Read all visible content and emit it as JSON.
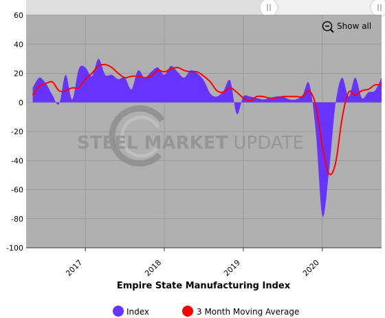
{
  "chart_data": {
    "type": "area",
    "title": "Empire State Manufacturing Index",
    "xlabel": "",
    "ylabel": "",
    "ylim": [
      -100,
      60
    ],
    "y_ticks": [
      "60",
      "40",
      "20",
      "0",
      "-20",
      "-40",
      "-60",
      "-80",
      "-100"
    ],
    "x_ticks": [
      "2017",
      "2018",
      "2019",
      "2020"
    ],
    "legend_position": "bottom-center",
    "grid": true,
    "series": [
      {
        "name": "Index",
        "type": "area",
        "color": "#6633ff",
        "x": [
          "2016-05",
          "2016-06",
          "2016-07",
          "2016-08",
          "2016-09",
          "2016-10",
          "2016-11",
          "2016-12",
          "2017-01",
          "2017-02",
          "2017-03",
          "2017-04",
          "2017-05",
          "2017-06",
          "2017-07",
          "2017-08",
          "2017-09",
          "2017-10",
          "2017-11",
          "2017-12",
          "2018-01",
          "2018-02",
          "2018-03",
          "2018-04",
          "2018-05",
          "2018-06",
          "2018-07",
          "2018-08",
          "2018-09",
          "2018-10",
          "2018-11",
          "2018-12",
          "2019-01",
          "2019-02",
          "2019-03",
          "2019-04",
          "2019-05",
          "2019-06",
          "2019-07",
          "2019-08",
          "2019-09",
          "2019-10",
          "2019-11",
          "2019-12",
          "2020-01",
          "2020-02",
          "2020-03",
          "2020-04",
          "2020-05",
          "2020-06",
          "2020-07",
          "2020-08",
          "2020-09",
          "2020-10"
        ],
        "values": [
          10,
          17,
          13,
          5,
          -1,
          19,
          2,
          23,
          24,
          18,
          30,
          19,
          19,
          16,
          17,
          9,
          22,
          17,
          21,
          24,
          19,
          25,
          21,
          17,
          22,
          20,
          15,
          6,
          4,
          8,
          15,
          -8,
          4,
          4,
          3,
          2,
          3,
          4,
          4,
          2,
          2,
          5,
          13,
          -20,
          -78,
          -48,
          -1,
          17,
          4,
          17,
          3,
          7,
          8,
          17
        ]
      },
      {
        "name": "3 Month Moving Average",
        "type": "line",
        "color": "#ff0000",
        "x": [
          "2016-05",
          "2016-06",
          "2016-07",
          "2016-08",
          "2016-09",
          "2016-10",
          "2016-11",
          "2016-12",
          "2017-01",
          "2017-02",
          "2017-03",
          "2017-04",
          "2017-05",
          "2017-06",
          "2017-07",
          "2017-08",
          "2017-09",
          "2017-10",
          "2017-11",
          "2017-12",
          "2018-01",
          "2018-02",
          "2018-03",
          "2018-04",
          "2018-05",
          "2018-06",
          "2018-07",
          "2018-08",
          "2018-09",
          "2018-10",
          "2018-11",
          "2018-12",
          "2019-01",
          "2019-02",
          "2019-03",
          "2019-04",
          "2019-05",
          "2019-06",
          "2019-07",
          "2019-08",
          "2019-09",
          "2019-10",
          "2019-11",
          "2019-12",
          "2020-01",
          "2020-02",
          "2020-03",
          "2020-04",
          "2020-05",
          "2020-06",
          "2020-07",
          "2020-08",
          "2020-09",
          "2020-10"
        ],
        "values": [
          5,
          11,
          13,
          14,
          8,
          8,
          10,
          10,
          16,
          20,
          25,
          26,
          24,
          20,
          17,
          18,
          18,
          17,
          18,
          22,
          21,
          23,
          24,
          22,
          21,
          21,
          18,
          14,
          8,
          7,
          10,
          7,
          3,
          1,
          4,
          4,
          3,
          3,
          4,
          4,
          4,
          4,
          8,
          -2,
          -30,
          -49,
          -42,
          -11,
          7,
          5,
          8,
          9,
          12,
          12
        ]
      }
    ]
  },
  "controls": {
    "show_all_label": "Show all",
    "zoom_icon": "zoom-out-icon"
  },
  "watermark": {
    "brand_bold": "STEEL MARKET",
    "brand_light": " UPDATE"
  },
  "colors": {
    "plot_background": "#b0b0b0",
    "index_fill": "#6633ff",
    "moving_average_line": "#ff0000",
    "scrollbar_track": "#f2f2f2"
  }
}
